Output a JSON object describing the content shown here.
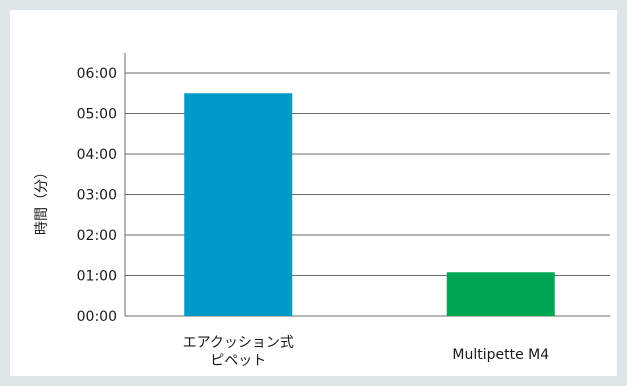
{
  "chart_data": {
    "type": "bar",
    "title": "",
    "xlabel": "",
    "ylabel": "時間（分）",
    "y_unit": "mm:ss",
    "ylim": [
      0,
      6
    ],
    "yticks": [
      0,
      1,
      2,
      3,
      4,
      5,
      6
    ],
    "ytick_labels": [
      "00:00",
      "01:00",
      "02:00",
      "03:00",
      "04:00",
      "05:00",
      "06:00"
    ],
    "categories": [
      "エアクッション式\nピペット",
      "Multipette M4"
    ],
    "category_lines": [
      [
        "エアクッション式",
        "ピペット"
      ],
      [
        "Multipette M4"
      ]
    ],
    "values": [
      5.5,
      1.08
    ],
    "colors": [
      "#009ac8",
      "#00a651"
    ],
    "grid": true
  }
}
